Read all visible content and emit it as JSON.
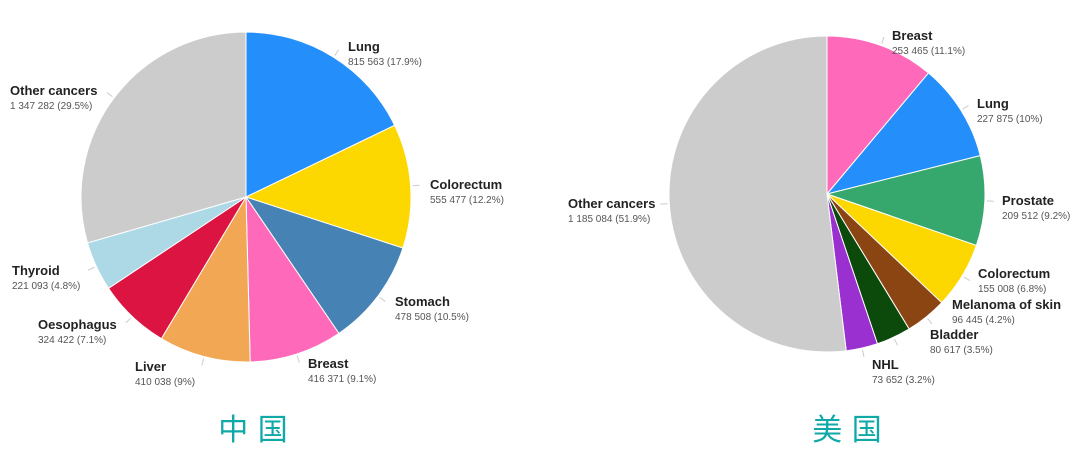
{
  "chart_data": [
    {
      "type": "pie",
      "title": "中 国",
      "start_angle": "top, clockwise",
      "slices": [
        {
          "label": "Lung",
          "value": 815563,
          "text": "815 563 (17.9%)",
          "color": "#248ffb"
        },
        {
          "label": "Colorectum",
          "value": 555477,
          "text": "555 477 (12.2%)",
          "color": "#fdd700"
        },
        {
          "label": "Stomach",
          "value": 478508,
          "text": "478 508 (10.5%)",
          "color": "#4682b4"
        },
        {
          "label": "Breast",
          "value": 416371,
          "text": "416 371 (9.1%)",
          "color": "#ff69b9"
        },
        {
          "label": "Liver",
          "value": 410038,
          "text": "410 038 (9%)",
          "color": "#f2a754"
        },
        {
          "label": "Oesophagus",
          "value": 324422,
          "text": "324 422 (7.1%)",
          "color": "#dc1442"
        },
        {
          "label": "Thyroid",
          "value": 221093,
          "text": "221 093 (4.8%)",
          "color": "#add8e6"
        },
        {
          "label": "Other cancers",
          "value": 1347282,
          "text": "1 347 282 (29.5%)",
          "color": "#cccccc"
        }
      ]
    },
    {
      "type": "pie",
      "title": "美 国",
      "start_angle": "top, clockwise",
      "slices": [
        {
          "label": "Breast",
          "value": 253465,
          "text": "253 465 (11.1%)",
          "color": "#ff69b9"
        },
        {
          "label": "Lung",
          "value": 227875,
          "text": "227 875 (10%)",
          "color": "#248ffb"
        },
        {
          "label": "Prostate",
          "value": 209512,
          "text": "209 512 (9.2%)",
          "color": "#36a86e"
        },
        {
          "label": "Colorectum",
          "value": 155008,
          "text": "155 008 (6.8%)",
          "color": "#fdd700"
        },
        {
          "label": "Melanoma of skin",
          "value": 96445,
          "text": "96 445 (4.2%)",
          "color": "#8b4513"
        },
        {
          "label": "Bladder",
          "value": 80617,
          "text": "80 617 (3.5%)",
          "color": "#0b4a0b"
        },
        {
          "label": "NHL",
          "value": 73652,
          "text": "73 652 (3.2%)",
          "color": "#9b30d0"
        },
        {
          "label": "Other cancers",
          "value": 1185084,
          "text": "1 185 084 (51.9%)",
          "color": "#cccccc"
        }
      ]
    }
  ]
}
